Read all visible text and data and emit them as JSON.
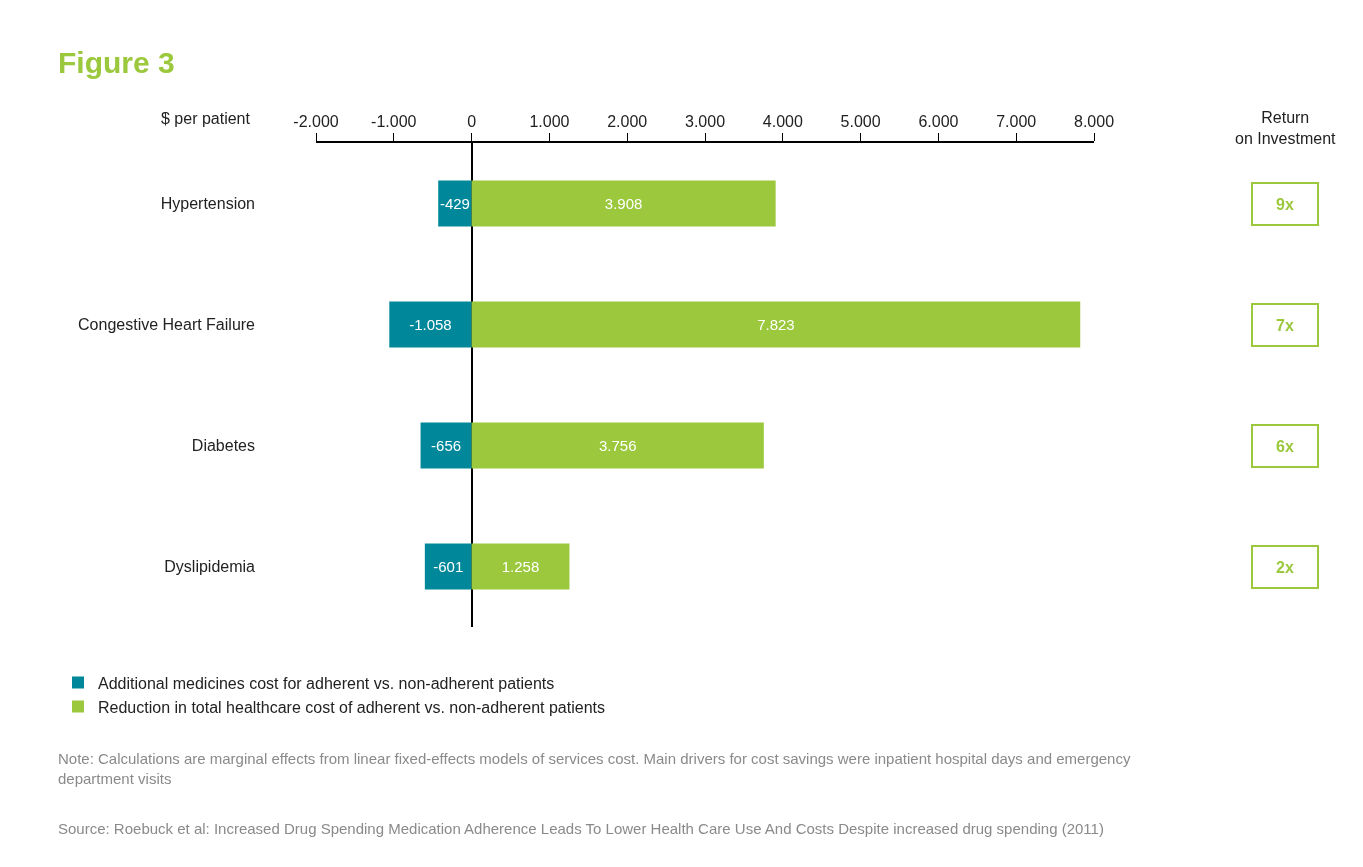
{
  "chart_data": {
    "type": "bar",
    "orientation": "horizontal",
    "stacked": true,
    "title": "Figure 3",
    "xlabel": "$ per patient",
    "categories": [
      "Hypertension",
      "Congestive Heart Failure",
      "Diabetes",
      "Dyslipidemia"
    ],
    "series": [
      {
        "name": "Additional medicines cost for adherent vs. non-adherent patients",
        "color": "#00889a",
        "values": [
          -429,
          -1058,
          -656,
          -601
        ],
        "value_labels": [
          "-429",
          "-1.058",
          "-656",
          "-601"
        ]
      },
      {
        "name": "Reduction in total healthcare cost of adherent vs. non-adherent patients",
        "color": "#9bc83c",
        "values": [
          3908,
          7823,
          3756,
          1258
        ],
        "value_labels": [
          "3.908",
          "7.823",
          "3.756",
          "1.258"
        ]
      }
    ],
    "xlim": [
      -2000,
      8000
    ],
    "xticks": [
      {
        "value": -2000,
        "label": "-2.000"
      },
      {
        "value": -1000,
        "label": "-1.000"
      },
      0,
      {
        "value": 1000,
        "label": "1.000"
      },
      {
        "value": 2000,
        "label": "2.000"
      },
      {
        "value": 3000,
        "label": "3.000"
      },
      {
        "value": 4000,
        "label": "4.000"
      },
      {
        "value": 5000,
        "label": "5.000"
      },
      {
        "value": 6000,
        "label": "6.000"
      },
      {
        "value": 7000,
        "label": "7.000"
      },
      {
        "value": 8000,
        "label": "8.000"
      }
    ],
    "annotations": [
      "Return\non Investment",
      "9x",
      "7x",
      "6x",
      "2x",
      "Note: Calculations are marginal effects from linear fixed-effects models of services cost. Main drivers for cost savings were inpatient hospital days and emergency\ndepartment visits",
      "Source: Roebuck et al: Increased Drug Spending Medication Adherence Leads To Lower Health Care Use And Costs Despite increased drug spending (2011)"
    ],
    "legend": "bottom left"
  }
}
